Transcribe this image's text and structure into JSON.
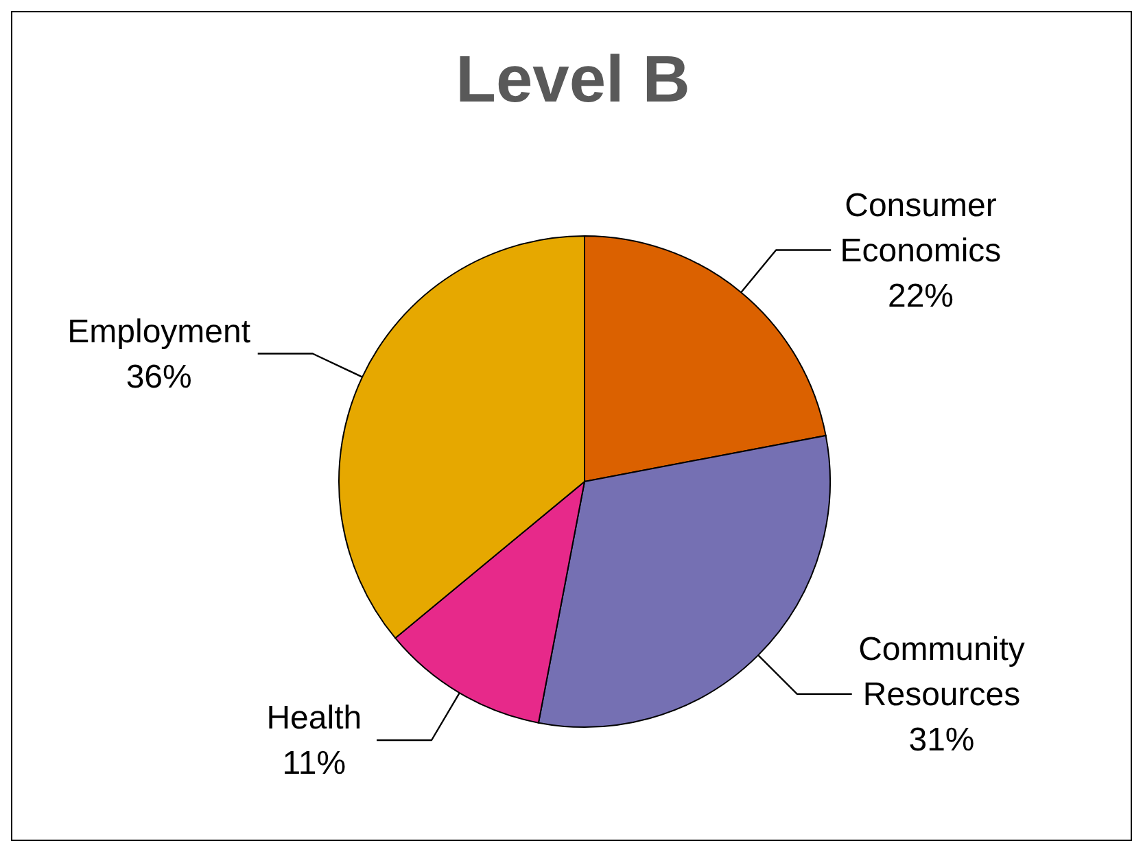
{
  "chart_data": {
    "type": "pie",
    "title": "Level B",
    "categories": [
      "Consumer Economics",
      "Community Resources",
      "Health",
      "Employment"
    ],
    "values": [
      22,
      31,
      11,
      36
    ],
    "value_labels": [
      "22%",
      "31%",
      "11%",
      "36%"
    ],
    "colors": [
      "#db6100",
      "#7570b3",
      "#e7298a",
      "#e6a800"
    ],
    "legend": false
  }
}
